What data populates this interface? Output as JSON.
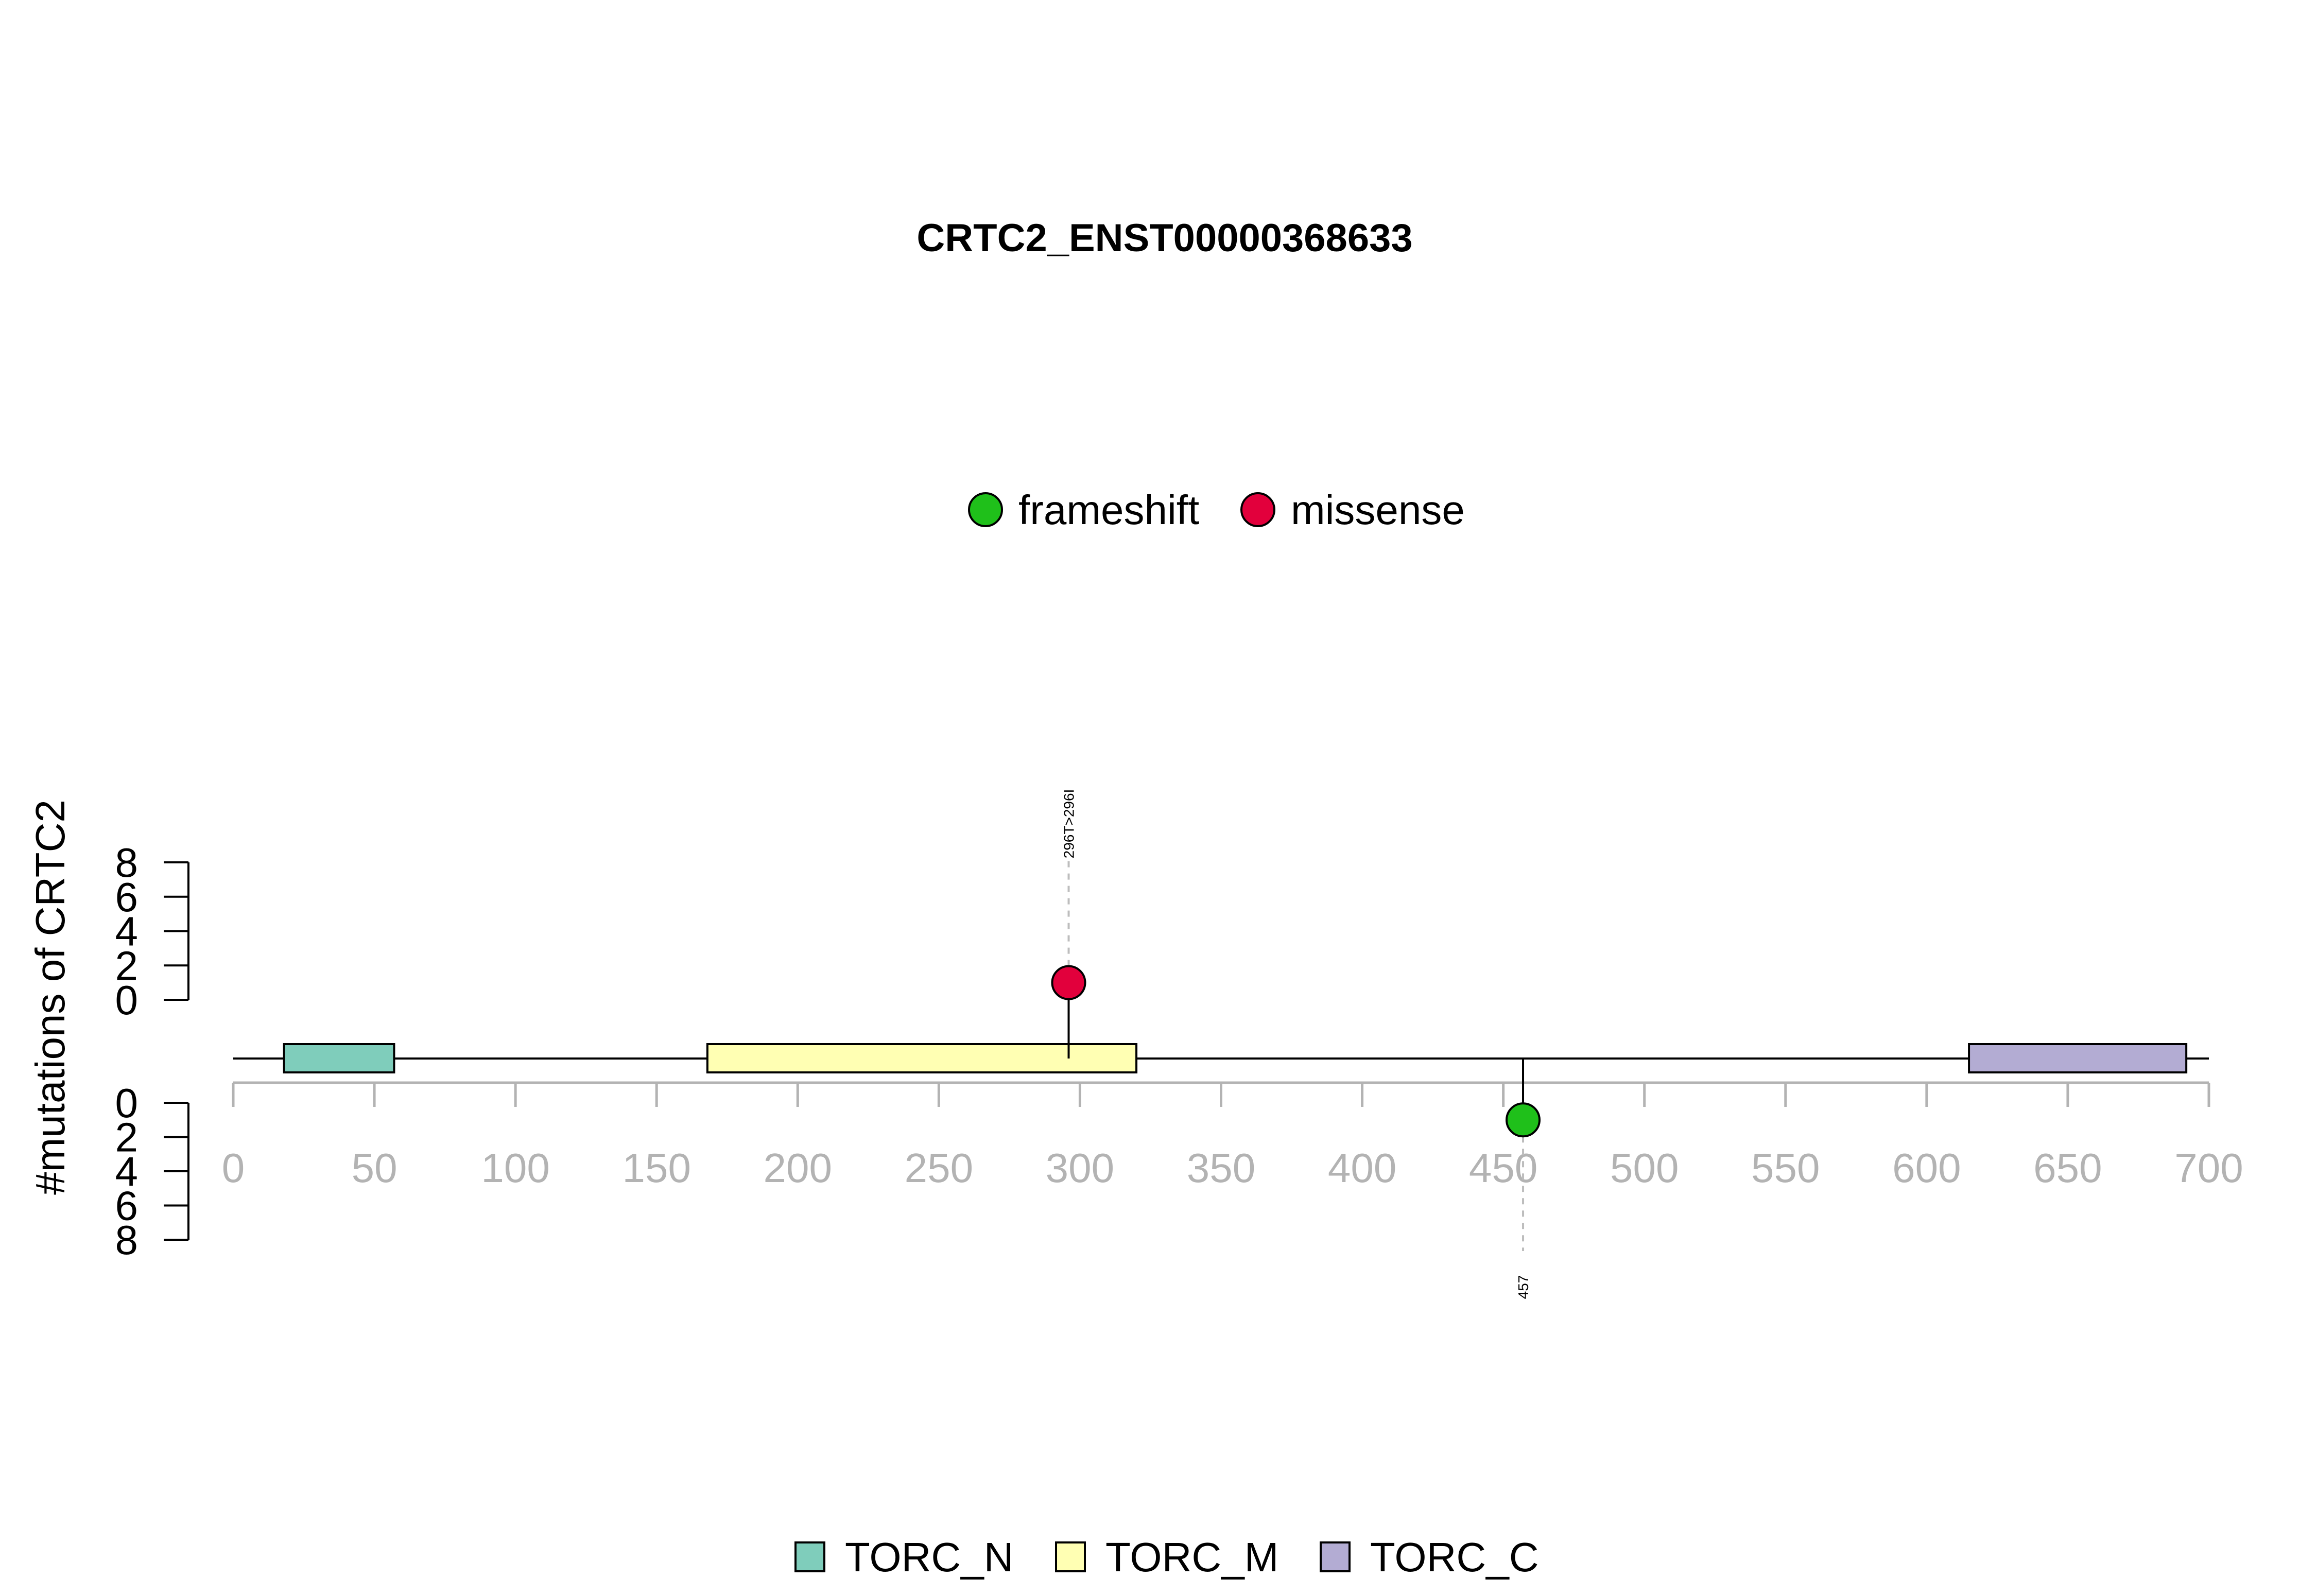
{
  "chart_data": {
    "type": "lollipop",
    "title": "CRTC2_ENST00000368633",
    "ylabel": "#mutations of CRTC2",
    "xlim": [
      0,
      700
    ],
    "x_ticks": [
      "0",
      "50",
      "100",
      "150",
      "200",
      "250",
      "300",
      "350",
      "400",
      "450",
      "500",
      "550",
      "600",
      "650",
      "700"
    ],
    "y_ticks_top": [
      "0",
      "2",
      "4",
      "6",
      "8"
    ],
    "y_ticks_bottom": [
      "0",
      "2",
      "4",
      "6",
      "8"
    ],
    "ylim": [
      0,
      8
    ],
    "protein_length": 693,
    "mutation_legend": [
      {
        "label": "frameshift",
        "color": "#1fc01a"
      },
      {
        "label": "missense",
        "color": "#e2003c"
      }
    ],
    "domain_legend": [
      {
        "label": "TORC_N",
        "color": "#7fcdbb"
      },
      {
        "label": "TORC_M",
        "color": "#ffffb3"
      },
      {
        "label": "TORC_C",
        "color": "#b3acd3"
      }
    ],
    "domains": [
      {
        "name": "TORC_N",
        "start": 18,
        "end": 57,
        "color": "#7fcdbb"
      },
      {
        "name": "TORC_M",
        "start": 168,
        "end": 320,
        "color": "#ffffb3"
      },
      {
        "name": "TORC_C",
        "start": 615,
        "end": 692,
        "color": "#b3acd3"
      }
    ],
    "mutations": [
      {
        "position": 296,
        "count": 1,
        "type": "missense",
        "side": "top",
        "label": "296T>296I",
        "color": "#e2003c"
      },
      {
        "position": 457,
        "count": 1,
        "type": "frameshift",
        "side": "bottom",
        "label": "457",
        "color": "#1fc01a"
      }
    ]
  }
}
